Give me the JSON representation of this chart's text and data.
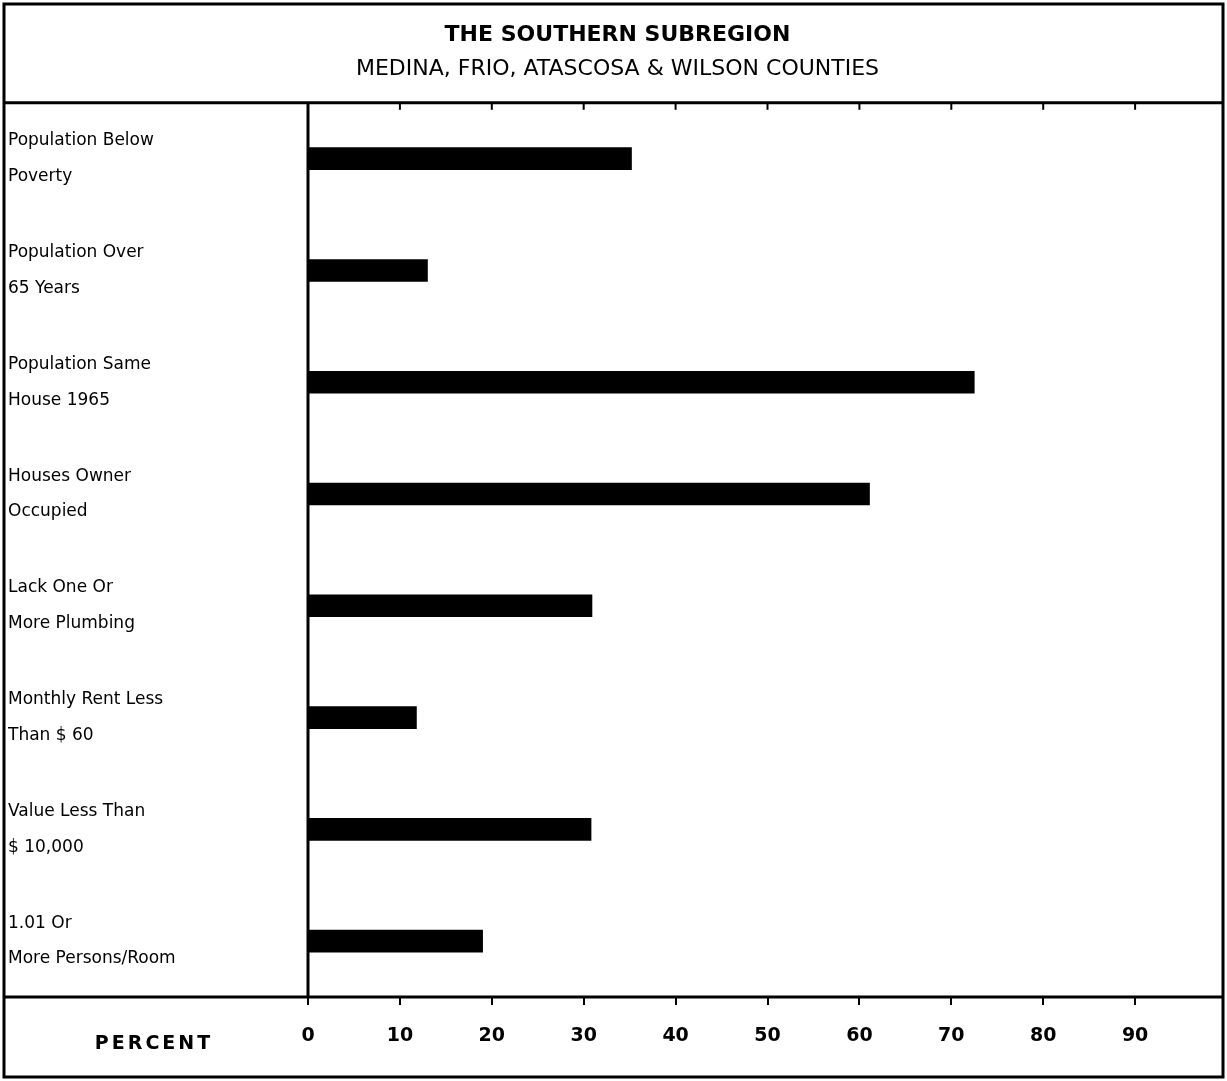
{
  "chart_data": {
    "type": "bar",
    "orientation": "horizontal",
    "title": "THE SOUTHERN SUBREGION",
    "subtitle": "MEDINA, FRIO, ATASCOSA & WILSON COUNTIES",
    "xlabel": "PERCENT",
    "categories": [
      "Population Below Poverty",
      "Population Over 65 Years",
      "Population Same House 1965",
      "Houses Owner Occupied",
      "Lack One Or More Plumbing",
      "Monthly Rent Less Than $ 60",
      "Value Less Than $ 10,000",
      "1.01 Or More Persons/Room"
    ],
    "values": [
      35.2,
      13,
      72.5,
      61.1,
      30.9,
      11.8,
      30.8,
      19
    ],
    "color": "#000000",
    "xlim": [
      0,
      100
    ],
    "xticks": [
      0,
      10,
      20,
      30,
      40,
      50,
      60,
      70,
      80,
      90
    ],
    "grid": false,
    "legend": false
  }
}
